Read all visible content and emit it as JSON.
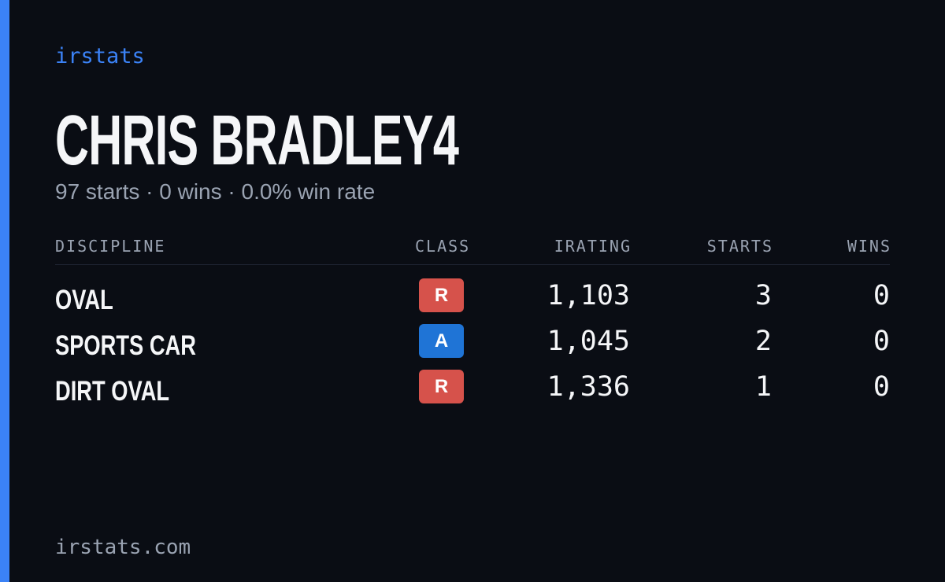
{
  "brand": "irstats",
  "title": "CHRIS BRADLEY4",
  "subtitle": "97 starts · 0 wins · 0.0% win rate",
  "table": {
    "headers": [
      "DISCIPLINE",
      "CLASS",
      "IRATING",
      "STARTS",
      "WINS"
    ],
    "rows": [
      {
        "discipline": "OVAL",
        "class": "R",
        "class_color": "#d6524b",
        "irating": "1,103",
        "starts": 3,
        "wins": 0
      },
      {
        "discipline": "SPORTS CAR",
        "class": "A",
        "class_color": "#1f74d6",
        "irating": "1,045",
        "starts": 2,
        "wins": 0
      },
      {
        "discipline": "DIRT OVAL",
        "class": "R",
        "class_color": "#d6524b",
        "irating": "1,336",
        "starts": 1,
        "wins": 0
      }
    ]
  },
  "footer": "irstats.com"
}
